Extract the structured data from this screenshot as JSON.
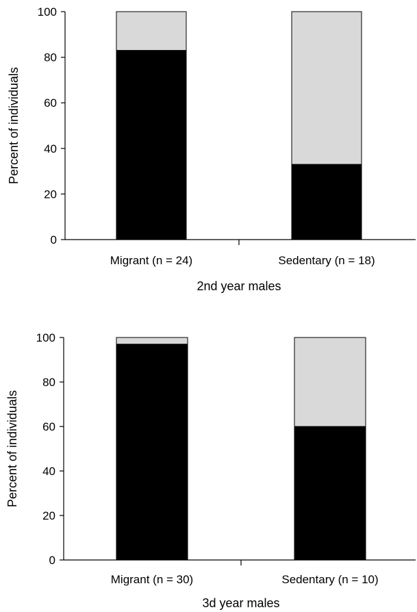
{
  "colors": {
    "lower": "#000000",
    "upper": "#d9d9d9",
    "axis": "#000000",
    "background": "#ffffff"
  },
  "chart_data": [
    {
      "type": "bar",
      "stacked": true,
      "title": "",
      "xlabel": "2nd year males",
      "ylabel": "Percent of individuals",
      "ylim": [
        0,
        100
      ],
      "yticks": [
        0,
        20,
        40,
        60,
        80,
        100
      ],
      "categories": [
        "Migrant (n = 24)",
        "Sedentary (n = 18)"
      ],
      "series": [
        {
          "values": [
            83,
            33
          ]
        },
        {
          "values": [
            17,
            67
          ]
        }
      ],
      "grid": false,
      "legend": "none"
    },
    {
      "type": "bar",
      "stacked": true,
      "title": "",
      "xlabel": "3d year males",
      "ylabel": "Percent of individuals",
      "ylim": [
        0,
        100
      ],
      "yticks": [
        0,
        20,
        40,
        60,
        80,
        100
      ],
      "categories": [
        "Migrant (n = 30)",
        "Sedentary (n = 10)"
      ],
      "series": [
        {
          "values": [
            97,
            60
          ]
        },
        {
          "values": [
            3,
            40
          ]
        }
      ],
      "grid": false,
      "legend": "none"
    }
  ]
}
